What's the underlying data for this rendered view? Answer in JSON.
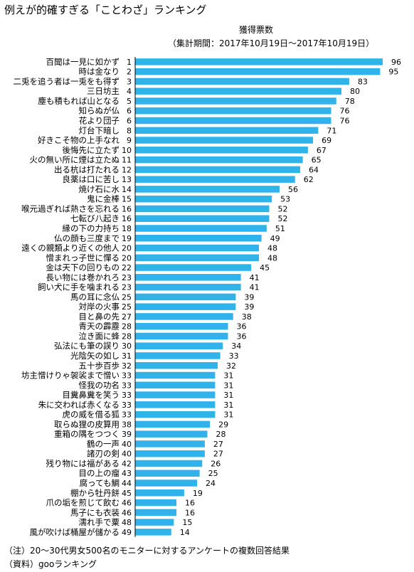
{
  "title": "例えが的確すぎる「ことわざ」ランキング",
  "legend_label": "獲得票数",
  "period": "（集計期間：2017年10月19日～2017年10月19日）",
  "notes": [
    "（注）20～30代男女500名のモニターに対するアンケートの複数回答結果",
    "（資料）gooランキング"
  ],
  "colors": {
    "bar": "#2fb3ea"
  },
  "chart_data": {
    "type": "bar",
    "orientation": "horizontal",
    "title": "例えが的確すぎる「ことわざ」ランキング",
    "series": [
      {
        "name": "獲得票数"
      }
    ],
    "rows": [
      {
        "label": "百聞は一見に如かず",
        "rank": "1",
        "value": 96
      },
      {
        "label": "時は金なり",
        "rank": "2",
        "value": 95
      },
      {
        "label": "二兎を追う者は一兎をも得ず",
        "rank": "3",
        "value": 83
      },
      {
        "label": "三日坊主",
        "rank": "4",
        "value": 80
      },
      {
        "label": "塵も積もれば山となる",
        "rank": "5",
        "value": 78
      },
      {
        "label": "知らぬが仏",
        "rank": "6",
        "value": 76
      },
      {
        "label": "花より団子",
        "rank": "6",
        "value": 76
      },
      {
        "label": "灯台下暗し",
        "rank": "8",
        "value": 71
      },
      {
        "label": "好きこそ物の上手なれ",
        "rank": "9",
        "value": 69
      },
      {
        "label": "後悔先に立たず",
        "rank": "10",
        "value": 67
      },
      {
        "label": "火の無い所に煙は立たぬ",
        "rank": "11",
        "value": 65
      },
      {
        "label": "出る杭は打たれる",
        "rank": "12",
        "value": 64
      },
      {
        "label": "良薬は口に苦し",
        "rank": "13",
        "value": 62
      },
      {
        "label": "焼け石に水",
        "rank": "14",
        "value": 56
      },
      {
        "label": "鬼に金棒",
        "rank": "15",
        "value": 53
      },
      {
        "label": "喉元過ぎれば熱さを忘れる",
        "rank": "16",
        "value": 52
      },
      {
        "label": "七転び八起き",
        "rank": "16",
        "value": 52
      },
      {
        "label": "縁の下の力持ち",
        "rank": "18",
        "value": 51
      },
      {
        "label": "仏の顔も三度まで",
        "rank": "19",
        "value": 49
      },
      {
        "label": "遠くの親類より近くの他人",
        "rank": "20",
        "value": 48
      },
      {
        "label": "憎まれっ子世に憚る",
        "rank": "20",
        "value": 48
      },
      {
        "label": "金は天下の回りもの",
        "rank": "22",
        "value": 45
      },
      {
        "label": "長い物には巻かれろ",
        "rank": "23",
        "value": 41
      },
      {
        "label": "飼い犬に手を噛まれる",
        "rank": "23",
        "value": 41
      },
      {
        "label": "馬の耳に念仏",
        "rank": "25",
        "value": 39
      },
      {
        "label": "対岸の火事",
        "rank": "25",
        "value": 39
      },
      {
        "label": "目と鼻の先",
        "rank": "27",
        "value": 38
      },
      {
        "label": "青天の霹靂",
        "rank": "28",
        "value": 36
      },
      {
        "label": "泣き面に蜂",
        "rank": "28",
        "value": 36
      },
      {
        "label": "弘法にも筆の誤り",
        "rank": "30",
        "value": 34
      },
      {
        "label": "光陰矢の如し",
        "rank": "31",
        "value": 33
      },
      {
        "label": "五十歩百歩",
        "rank": "32",
        "value": 32
      },
      {
        "label": "坊主憎けりゃ袈裟まで憎い",
        "rank": "33",
        "value": 31
      },
      {
        "label": "怪我の功名",
        "rank": "33",
        "value": 31
      },
      {
        "label": "目糞鼻糞を笑う",
        "rank": "33",
        "value": 31
      },
      {
        "label": "朱に交われば赤くなる",
        "rank": "33",
        "value": 31
      },
      {
        "label": "虎の威を借る狐",
        "rank": "33",
        "value": 31
      },
      {
        "label": "取らぬ狸の皮算用",
        "rank": "38",
        "value": 29
      },
      {
        "label": "重箱の隅をつつく",
        "rank": "39",
        "value": 28
      },
      {
        "label": "鶴の一声",
        "rank": "40",
        "value": 27
      },
      {
        "label": "諸刃の剣",
        "rank": "40",
        "value": 27
      },
      {
        "label": "残り物には福がある",
        "rank": "42",
        "value": 26
      },
      {
        "label": "目の上の瘤",
        "rank": "43",
        "value": 25
      },
      {
        "label": "腐っても鯛",
        "rank": "44",
        "value": 24
      },
      {
        "label": "棚から牡丹餅",
        "rank": "45",
        "value": 19
      },
      {
        "label": "爪の垢を煎じて飲む",
        "rank": "46",
        "value": 16
      },
      {
        "label": "馬子にも衣装",
        "rank": "46",
        "value": 16
      },
      {
        "label": "濡れ手で粟",
        "rank": "48",
        "value": 15
      },
      {
        "label": "風が吹けば桶屋が儲かる",
        "rank": "49",
        "value": 14
      }
    ]
  }
}
